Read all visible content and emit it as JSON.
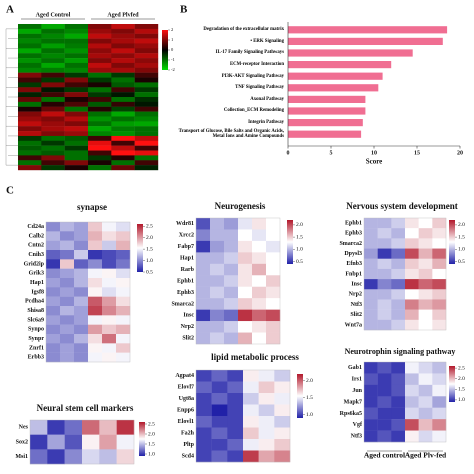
{
  "chart_data": [
    {
      "type": "heatmap",
      "panel_label": "A",
      "groups": [
        "Aged Control",
        "Aged Plvfed"
      ],
      "colors": [
        "#00e000",
        "#000000",
        "#ff1010"
      ],
      "zlim": [
        -2,
        2
      ],
      "zticks": [
        2,
        1,
        0,
        -1,
        -2
      ],
      "values": [
        [
          -1,
          -1.5,
          -1,
          1,
          1.5,
          1
        ],
        [
          -1.5,
          -1,
          -1.2,
          1.2,
          1,
          1.4
        ],
        [
          -1,
          -1.2,
          -1.5,
          1.5,
          1.2,
          1
        ],
        [
          -1.2,
          -1,
          -1,
          1,
          1.3,
          1.5
        ],
        [
          -1,
          -1.4,
          -1.1,
          1.4,
          1,
          1.2
        ],
        [
          -1.5,
          -1,
          -1.3,
          1.1,
          1.5,
          1
        ],
        [
          -1,
          -1.2,
          -1,
          1.3,
          1.1,
          1.4
        ],
        [
          -1.3,
          -1,
          -1.4,
          1,
          1.4,
          1.1
        ],
        [
          -1,
          -1.5,
          -1,
          1.5,
          1,
          1.3
        ],
        [
          -1.2,
          -1.1,
          -1.2,
          1.2,
          1.3,
          1
        ],
        [
          1,
          0.5,
          -0.5,
          -1,
          -0.5,
          0.5
        ],
        [
          0.5,
          -0.5,
          1,
          -0.5,
          -1,
          0.2
        ],
        [
          -0.5,
          1,
          0.5,
          0.2,
          -0.8,
          -1
        ],
        [
          1,
          -0.2,
          -0.5,
          -1,
          0.5,
          -0.5
        ],
        [
          -0.3,
          0.5,
          1,
          -0.5,
          -0.2,
          -1
        ],
        [
          0.8,
          -1,
          0.2,
          0.5,
          -1,
          -0.4
        ],
        [
          -1,
          0.3,
          0.6,
          -0.8,
          0.4,
          -0.2
        ],
        [
          0.2,
          0.8,
          -1,
          0.3,
          -0.6,
          0.5
        ],
        [
          1,
          1.5,
          1,
          -1,
          -1.5,
          -1
        ],
        [
          1.2,
          1,
          1.4,
          -1.3,
          -1,
          -1.2
        ],
        [
          1.5,
          1.2,
          1,
          -1,
          -1.4,
          -1.5
        ],
        [
          1,
          1.3,
          1.5,
          -1.5,
          -1.1,
          -1
        ],
        [
          1.4,
          1,
          1.2,
          -1.2,
          -1.3,
          -1
        ],
        [
          -0.5,
          -1,
          -0.8,
          0.5,
          2,
          1.5
        ],
        [
          -1,
          -0.5,
          -1,
          1.8,
          0.5,
          2
        ],
        [
          -0.8,
          -1,
          -0.5,
          2,
          1.5,
          0.5
        ],
        [
          -1,
          -0.8,
          -1,
          0.5,
          2,
          1.8
        ],
        [
          0.5,
          1,
          -1,
          -0.5,
          0.3,
          -1
        ],
        [
          -1,
          0.5,
          1,
          0.2,
          -1,
          0.5
        ],
        [
          1,
          -0.5,
          0.2,
          -1,
          0.8,
          -0.3
        ]
      ]
    },
    {
      "type": "bar",
      "panel_label": "B",
      "orientation": "horizontal",
      "color": "#f06e92",
      "x_label": "Score",
      "xlim": [
        0,
        20
      ],
      "xticks": [
        0,
        5,
        10,
        15,
        20
      ],
      "categories": [
        "Degradation of the extracellular matrix",
        "• ERK Signaling",
        "IL-17 Family Signaling Pathways",
        "ECM-receptor Interaction",
        "PI3K-AKT Signaling Pathway",
        "TNF Signaling Pathway",
        "Axonal Pathway",
        "Collection_ECM Remodeling",
        "Integrin Pathway",
        "Transport of Glucose, Bile Salts and Organic Acids, Metal Ions and Amine Compounds"
      ],
      "values": [
        18.5,
        18,
        14.5,
        12,
        11,
        10.5,
        9,
        9,
        8.7,
        8.5
      ]
    },
    {
      "type": "heatmap",
      "panel_label": "C",
      "title": "synapse",
      "colors": [
        "#2121a8",
        "#ffffff",
        "#b2182b"
      ],
      "zlim": [
        0.5,
        2.6
      ],
      "zticks": [
        2.5,
        {
          "value": 2,
          "label": "2.0"
        },
        1.5,
        {
          "value": 1,
          "label": "1.0"
        },
        0.5
      ],
      "rows": [
        "Cd24a",
        "Calb2",
        "Cntn2",
        "Cnih3",
        "Grid2ip",
        "Grik3",
        "Hap1",
        "Igsf8",
        "Pcdha4",
        "Shisa8",
        "Slc6a9",
        "Synpo",
        "Synpr",
        "Znrf1",
        "Erbb3"
      ],
      "values": [
        [
          1.0,
          1.2,
          1.1,
          1.8,
          1.5,
          1.4
        ],
        [
          1.2,
          1.0,
          1.1,
          1.9,
          1.7,
          1.8
        ],
        [
          1.1,
          1.2,
          1.0,
          1.8,
          1.3,
          1.9
        ],
        [
          0.8,
          0.9,
          1.3,
          0.6,
          0.7,
          0.8
        ],
        [
          0.6,
          1.8,
          0.8,
          1.0,
          0.7,
          0.9
        ],
        [
          1.0,
          1.1,
          1.2,
          1.5,
          1.6,
          1.4
        ],
        [
          1.1,
          1.0,
          1.2,
          1.7,
          1.5,
          1.6
        ],
        [
          1.0,
          1.1,
          1.0,
          1.6,
          1.4,
          1.5
        ],
        [
          1.1,
          1.0,
          1.2,
          2.3,
          2.0,
          1.7
        ],
        [
          1.0,
          1.2,
          1.1,
          2.4,
          2.1,
          1.9
        ],
        [
          1.1,
          1.0,
          1.1,
          1.5,
          1.6,
          1.5
        ],
        [
          1.0,
          1.1,
          1.0,
          2.0,
          1.8,
          1.9
        ],
        [
          1.1,
          1.0,
          1.2,
          1.7,
          2.2,
          1.5
        ],
        [
          1.0,
          1.1,
          1.0,
          1.6,
          1.5,
          1.8
        ],
        [
          1.0,
          1.1,
          1.0,
          1.5,
          1.6,
          1.5
        ]
      ]
    },
    {
      "type": "heatmap",
      "title": "Neural stem cell markers",
      "colors": [
        "#2121a8",
        "#ffffff",
        "#b2182b"
      ],
      "zlim": [
        0.9,
        2.6
      ],
      "zticks": [
        2.5,
        {
          "value": 2,
          "label": "2.0"
        },
        1.5,
        {
          "value": 1,
          "label": "1.0"
        }
      ],
      "rows": [
        "Nes",
        "Sox2",
        "Msi1"
      ],
      "values": [
        [
          1.5,
          1.0,
          1.2,
          2.3,
          2.0,
          2.5
        ],
        [
          1.0,
          1.4,
          1.1,
          1.8,
          2.1,
          1.7
        ],
        [
          1.2,
          1.0,
          1.3,
          1.6,
          1.5,
          1.9
        ]
      ]
    },
    {
      "type": "heatmap",
      "title": "Neurogenesis",
      "colors": [
        "#2121a8",
        "#ffffff",
        "#b2182b"
      ],
      "zlim": [
        0.4,
        2.2
      ],
      "zticks": [
        {
          "value": 2,
          "label": "2.0"
        },
        1.5,
        {
          "value": 1,
          "label": "1.0"
        },
        0.5
      ],
      "rows": [
        "Wdr81",
        "Xrcc2",
        "Fabp7",
        "Hap1",
        "Rarb",
        "Ephb1",
        "Ephb3",
        "Smarca2",
        "Insc",
        "Nrp2",
        "Slit2"
      ],
      "values": [
        [
          0.6,
          1.0,
          0.9,
          1.2,
          1.4,
          1.3
        ],
        [
          0.8,
          1.0,
          1.0,
          1.3,
          1.2,
          1.3
        ],
        [
          0.5,
          0.9,
          1.0,
          1.4,
          1.3,
          1.2
        ],
        [
          1.0,
          1.0,
          1.1,
          1.5,
          1.4,
          1.3
        ],
        [
          1.0,
          1.1,
          1.0,
          1.4,
          1.6,
          1.3
        ],
        [
          1.0,
          1.0,
          1.1,
          1.4,
          1.3,
          1.5
        ],
        [
          1.0,
          1.1,
          1.0,
          1.3,
          1.5,
          1.4
        ],
        [
          1.0,
          1.0,
          1.1,
          1.5,
          1.4,
          1.3
        ],
        [
          0.5,
          0.8,
          0.7,
          2.1,
          1.9,
          2.0
        ],
        [
          1.0,
          1.0,
          1.1,
          1.3,
          1.4,
          1.5
        ],
        [
          1.0,
          1.1,
          1.0,
          1.6,
          1.3,
          1.5
        ]
      ]
    },
    {
      "type": "heatmap",
      "title": "lipid metabolic process",
      "colors": [
        "#2121a8",
        "#ffffff",
        "#b2182b"
      ],
      "zlim": [
        0.9,
        2.2
      ],
      "zticks": [
        {
          "value": 2,
          "label": "2.0"
        },
        1.5,
        {
          "value": 1,
          "label": "1.0"
        }
      ],
      "rows": [
        "Agpat4",
        "Elovl7",
        "Ugt8a",
        "Enpp6",
        "Elovl1",
        "Fa2h",
        "Pltp",
        "Scd4"
      ],
      "values": [
        [
          1.0,
          1.1,
          1.0,
          1.6,
          1.5,
          1.4
        ],
        [
          1.1,
          1.0,
          1.1,
          1.5,
          1.7,
          1.6
        ],
        [
          1.0,
          1.1,
          1.0,
          1.4,
          1.6,
          1.5
        ],
        [
          1.0,
          0.9,
          1.0,
          1.5,
          1.4,
          1.6
        ],
        [
          1.1,
          1.0,
          1.0,
          1.6,
          1.5,
          1.4
        ],
        [
          1.0,
          1.1,
          1.0,
          1.7,
          1.5,
          1.6
        ],
        [
          1.0,
          1.0,
          1.1,
          1.5,
          1.6,
          1.7
        ],
        [
          1.0,
          1.1,
          1.0,
          2.1,
          1.8,
          1.9
        ]
      ]
    },
    {
      "type": "heatmap",
      "title": "Nervous system development",
      "colors": [
        "#2121a8",
        "#ffffff",
        "#b2182b"
      ],
      "zlim": [
        0.4,
        2.2
      ],
      "zticks": [
        {
          "value": 2,
          "label": "2.0"
        },
        1.5,
        {
          "value": 1,
          "label": "1.0"
        },
        0.5
      ],
      "rows": [
        "Ephb1",
        "Ephb3",
        "Smarca2",
        "Dpysl3",
        "Efnb3",
        "Fnbp1",
        "Insc",
        "Nrp2",
        "Ntf3",
        "Slit2",
        "Wnt7a"
      ],
      "values": [
        [
          1.0,
          1.0,
          1.1,
          1.4,
          1.3,
          1.5
        ],
        [
          1.0,
          1.1,
          1.0,
          1.3,
          1.5,
          1.4
        ],
        [
          1.0,
          1.0,
          1.1,
          1.5,
          1.4,
          1.3
        ],
        [
          0.9,
          0.5,
          0.7,
          2.0,
          1.6,
          1.9
        ],
        [
          1.0,
          1.1,
          1.0,
          1.5,
          1.4,
          1.6
        ],
        [
          1.0,
          1.0,
          1.1,
          1.4,
          1.5,
          1.3
        ],
        [
          0.5,
          0.8,
          0.7,
          2.1,
          1.9,
          2.0
        ],
        [
          1.0,
          1.0,
          1.1,
          1.3,
          1.4,
          1.5
        ],
        [
          1.0,
          1.1,
          1.0,
          1.8,
          1.6,
          1.7
        ],
        [
          1.0,
          1.1,
          1.0,
          1.6,
          1.3,
          1.5
        ],
        [
          1.0,
          1.0,
          1.1,
          1.4,
          1.3,
          1.4
        ]
      ]
    },
    {
      "type": "heatmap",
      "title": "Neurotrophin signaling pathway",
      "groups": [
        "Aged control",
        "Aged Plv-fed"
      ],
      "colors": [
        "#2121a8",
        "#ffffff",
        "#b2182b"
      ],
      "zlim": [
        0.9,
        2.6
      ],
      "zticks": [
        2.5,
        {
          "value": 2,
          "label": "2.0"
        },
        1.5,
        {
          "value": 1,
          "label": "1.0"
        }
      ],
      "rows": [
        "Gab1",
        "Irs1",
        "Jun",
        "Mapk7",
        "Rps6ka5",
        "Vgf",
        "Ntf3"
      ],
      "values": [
        [
          1.0,
          1.1,
          1.0,
          1.7,
          1.6,
          1.5
        ],
        [
          1.1,
          1.0,
          1.1,
          1.5,
          1.7,
          1.6
        ],
        [
          1.0,
          1.0,
          1.1,
          1.6,
          1.5,
          1.7
        ],
        [
          1.0,
          1.1,
          1.0,
          1.5,
          1.6,
          1.4
        ],
        [
          1.1,
          1.0,
          1.0,
          1.6,
          1.5,
          1.6
        ],
        [
          1.0,
          1.0,
          1.1,
          2.4,
          2.0,
          2.2
        ],
        [
          1.0,
          1.1,
          1.0,
          1.8,
          1.6,
          1.7
        ]
      ]
    }
  ]
}
